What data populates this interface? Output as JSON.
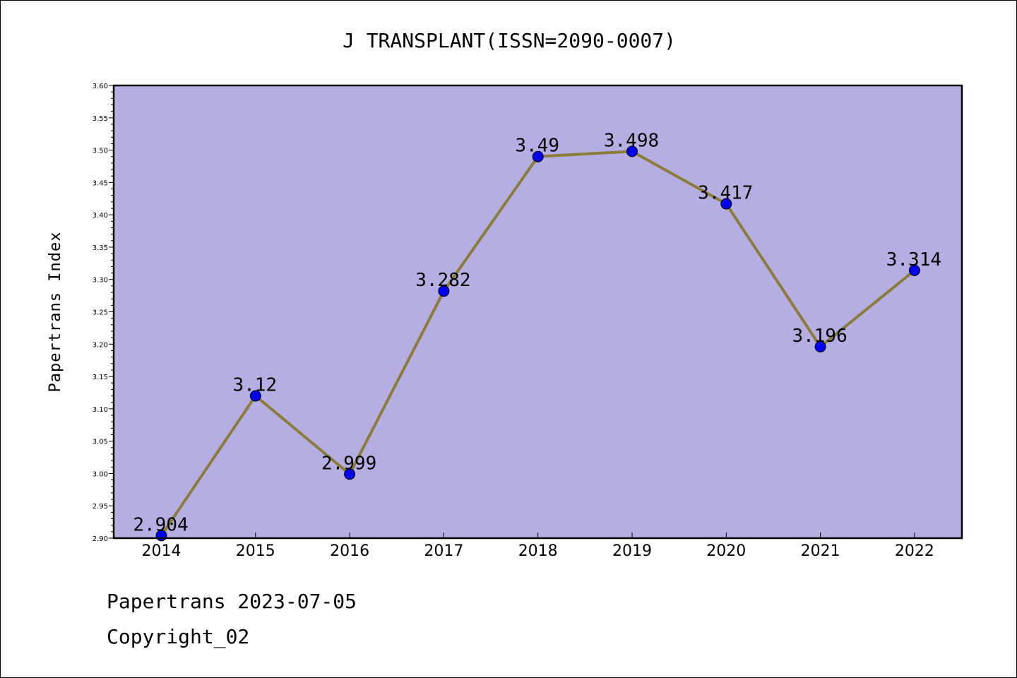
{
  "chart_data": {
    "type": "line",
    "title": "J TRANSPLANT(ISSN=2090-0007)",
    "xlabel": "",
    "ylabel": "Papertrans Index",
    "categories": [
      "2014",
      "2015",
      "2016",
      "2017",
      "2018",
      "2019",
      "2020",
      "2021",
      "2022"
    ],
    "series": [
      {
        "values": [
          2.904,
          3.12,
          2.999,
          3.282,
          3.49,
          3.498,
          3.417,
          3.196,
          3.314
        ]
      }
    ],
    "data_labels": [
      "2.904",
      "3.12",
      "2.999",
      "3.282",
      "3.49",
      "3.498",
      "3.417",
      "3.196",
      "3.314"
    ],
    "ylim": [
      2.9,
      3.6
    ],
    "yticks": [
      "2.90",
      "2.95",
      "3.00",
      "3.05",
      "3.10",
      "3.15",
      "3.20",
      "3.25",
      "3.30",
      "3.35",
      "3.40",
      "3.45",
      "3.50",
      "3.55",
      "3.60"
    ],
    "grid": false,
    "legend": "none",
    "colors": {
      "plot_background": "#b5aee2",
      "line": "#8b7c3a",
      "marker": "#0000ee",
      "axes": "#000000"
    }
  },
  "footer": {
    "date_line": "Papertrans 2023-07-05",
    "copyright_line": "Copyright_02"
  }
}
